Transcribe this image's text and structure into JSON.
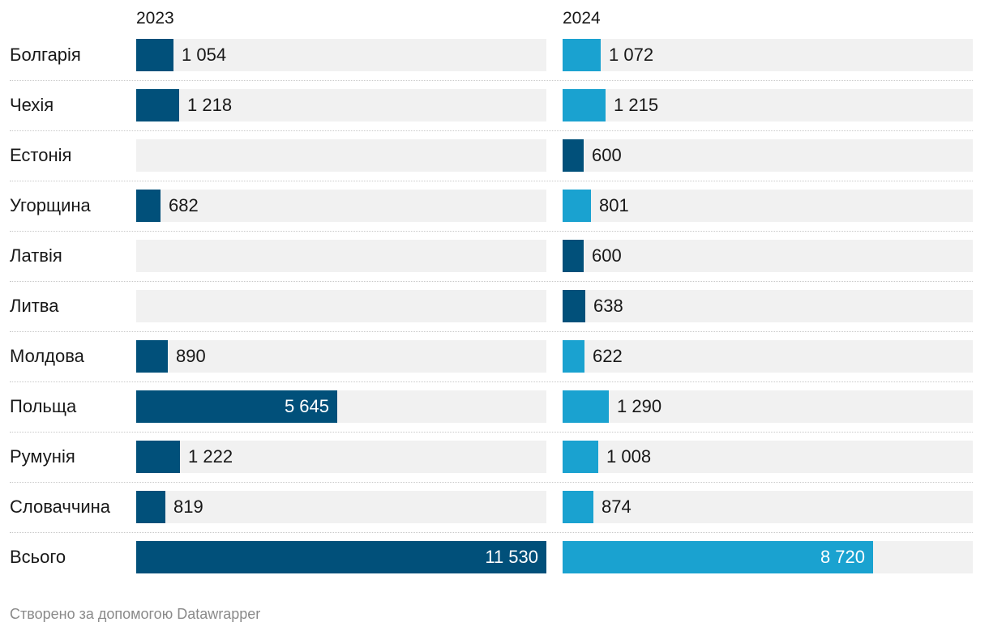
{
  "chart_data": {
    "type": "bar",
    "orientation": "horizontal",
    "columns": [
      {
        "name": "2023",
        "values": [
          1054,
          1218,
          null,
          682,
          null,
          null,
          890,
          5645,
          1222,
          819,
          11530
        ]
      },
      {
        "name": "2024",
        "values": [
          1072,
          1215,
          600,
          801,
          600,
          638,
          622,
          1290,
          1008,
          874,
          8720
        ]
      }
    ],
    "categories": [
      "Болгарія",
      "Чехія",
      "Естонія",
      "Угорщина",
      "Латвія",
      "Литва",
      "Молдова",
      "Польща",
      "Румунія",
      "Словаччина",
      "Всього"
    ],
    "labels": {
      "2023": [
        "1 054",
        "1 218",
        "",
        "682",
        "",
        "",
        "890",
        "5 645",
        "1 222",
        "819",
        "11 530"
      ],
      "2024": [
        "1 072",
        "1 215",
        "600",
        "801",
        "600",
        "638",
        "622",
        "1 290",
        "1 008",
        "874",
        "8 720"
      ]
    },
    "bar_colors": {
      "2023": [
        "dark",
        "dark",
        "",
        "dark",
        "",
        "",
        "dark",
        "dark",
        "dark",
        "dark",
        "dark"
      ],
      "2024": [
        "light",
        "light",
        "dark",
        "light",
        "dark",
        "dark",
        "light",
        "light",
        "light",
        "light",
        "light"
      ]
    },
    "xlim": [
      0,
      11530
    ]
  },
  "colors": {
    "dark": "#01507a",
    "light": "#1aa2d0",
    "track": "#f1f1f1"
  },
  "footer": {
    "credit": "Створено за допомогою Datawrapper"
  }
}
